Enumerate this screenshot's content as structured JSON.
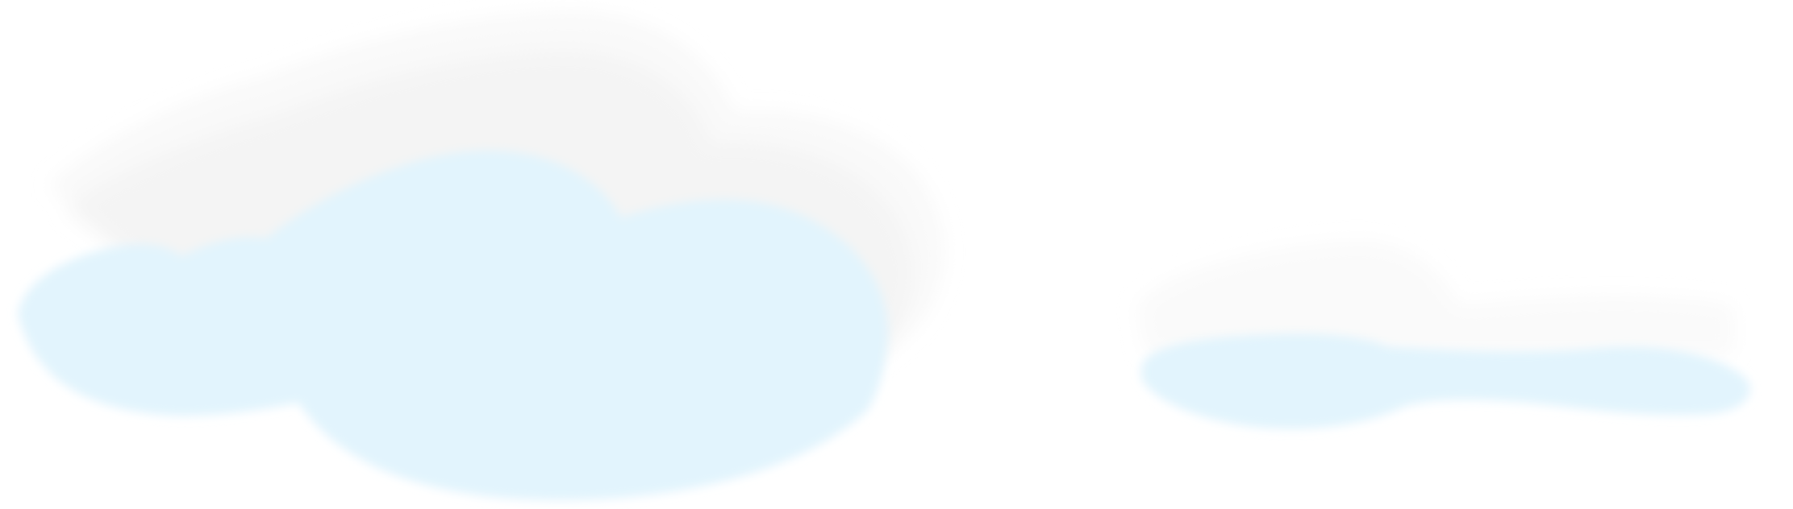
{
  "scene": {
    "background_color": "#ffffff",
    "cloud_fill_color": "#e2f4fd",
    "cloud_shadow_color": "#f2f2f2",
    "clouds": [
      {
        "name": "large-cloud-left",
        "has_motion_trail": true
      },
      {
        "name": "small-cloud-right",
        "has_motion_trail": true
      }
    ]
  }
}
